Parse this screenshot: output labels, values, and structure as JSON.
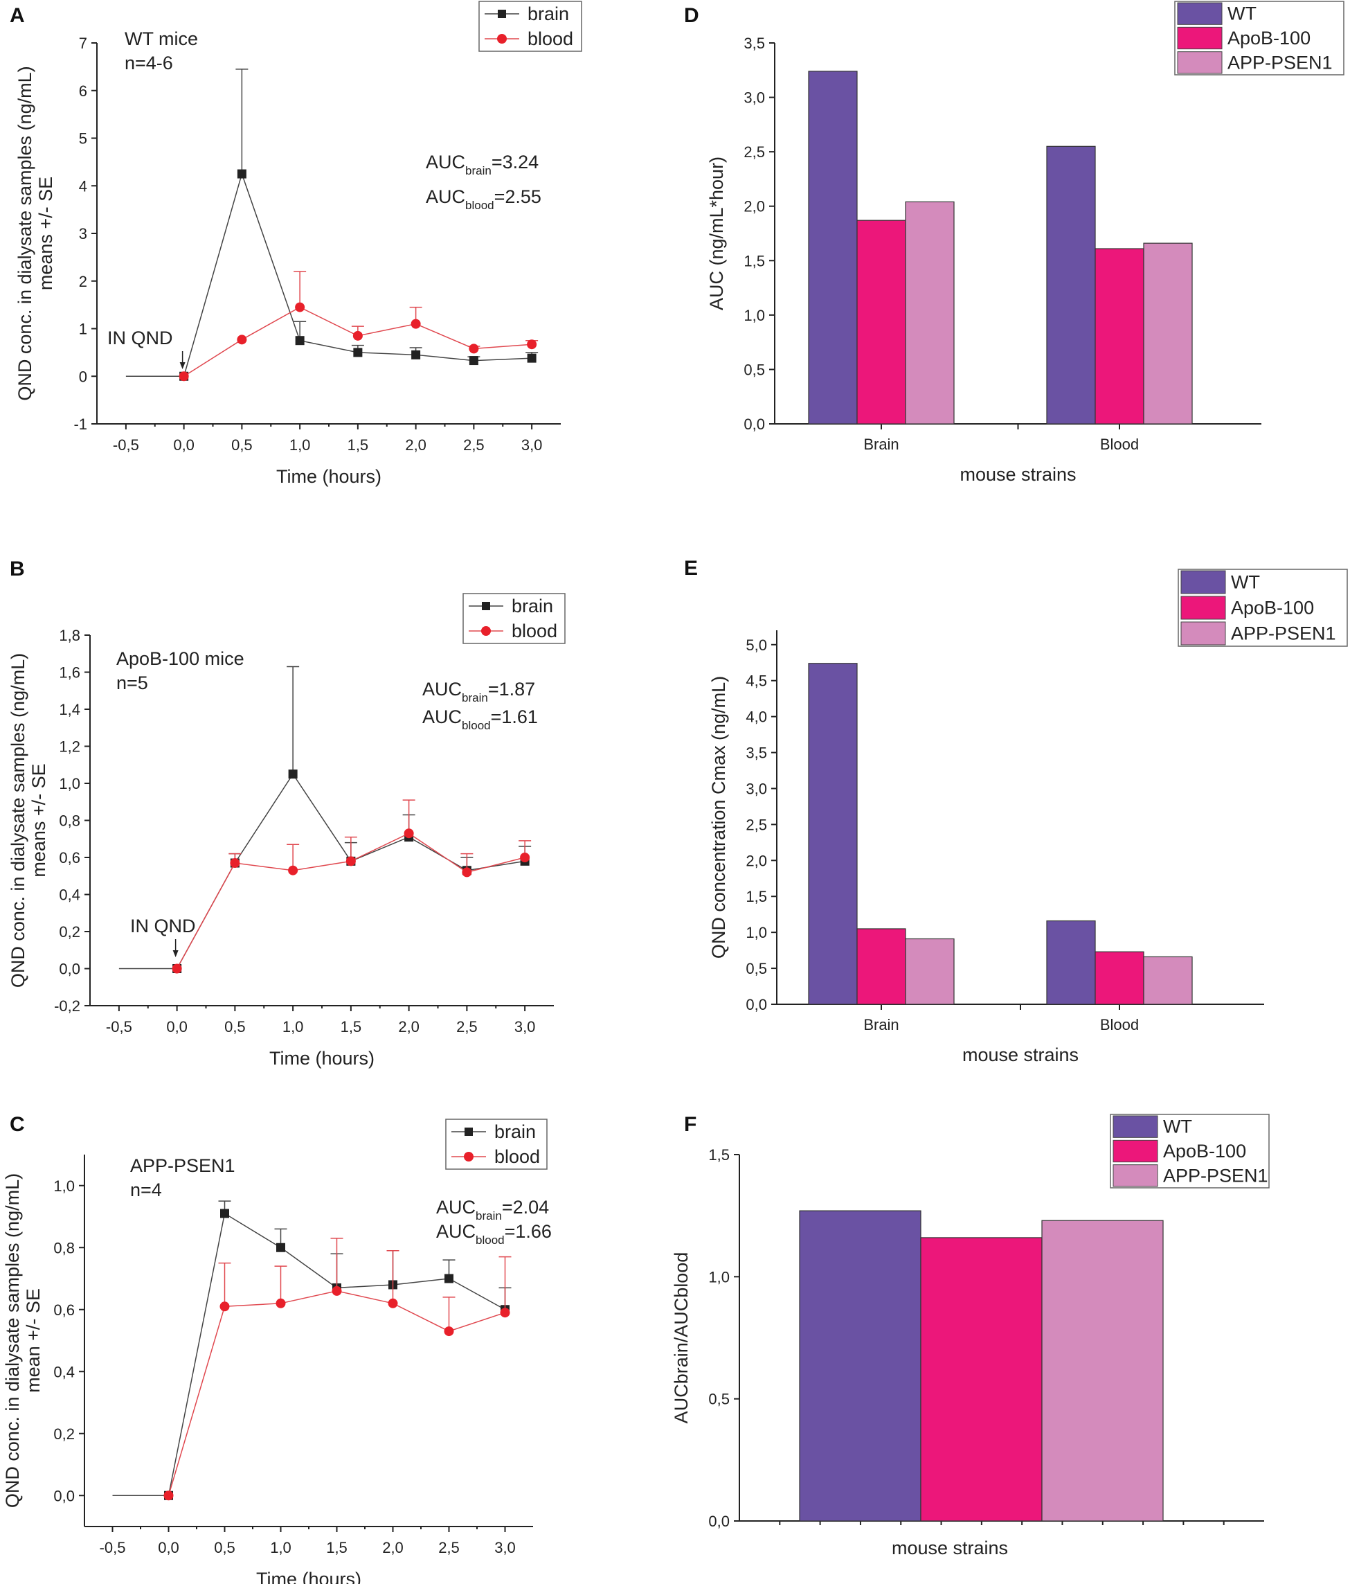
{
  "colors": {
    "brain": "#222222",
    "blood": "#e8202a",
    "brain_line": "#444444",
    "blood_line": "#e0484f",
    "WT": "#6a52a3",
    "ApoB-100": "#ec177a",
    "APP-PSEN1": "#d48bbc"
  },
  "chart_data": [
    {
      "panel": "A",
      "type": "line",
      "title": "WT mice",
      "subtitle": "n=4-6",
      "xlabel": "Time (hours)",
      "ylabel": [
        "QND conc. in dialysate samples (ng/mL)",
        "means +/- SE"
      ],
      "xlim": [
        -0.75,
        3.25
      ],
      "ylim": [
        -1,
        7
      ],
      "xticks": [
        -0.5,
        0,
        0.5,
        1,
        1.5,
        2,
        2.5,
        3
      ],
      "xtick_labels": [
        "-0,5",
        "0,0",
        "0,5",
        "1,0",
        "1,5",
        "2,0",
        "2,5",
        "3,0"
      ],
      "yticks": [
        -1,
        0,
        1,
        2,
        3,
        4,
        5,
        6,
        7
      ],
      "ytick_labels": [
        "-1",
        "0",
        "1",
        "2",
        "3",
        "4",
        "5",
        "6",
        "7"
      ],
      "baseline": {
        "x": [
          -0.5,
          0
        ],
        "y": [
          0,
          0
        ]
      },
      "annotation": "IN QND",
      "auc": [
        {
          "base": "AUC",
          "sub": "brain",
          "value": "=3.24"
        },
        {
          "base": "AUC",
          "sub": "blood",
          "value": "=2.55"
        }
      ],
      "legend": [
        "brain",
        "blood"
      ],
      "series": [
        {
          "name": "brain",
          "x": [
            0,
            0.5,
            1,
            1.5,
            2,
            2.5,
            3
          ],
          "y": [
            0,
            4.25,
            0.75,
            0.5,
            0.45,
            0.33,
            0.38
          ],
          "err": [
            0,
            2.2,
            0.4,
            0.15,
            0.15,
            0.08,
            0.12
          ]
        },
        {
          "name": "blood",
          "x": [
            0,
            0.5,
            1,
            1.5,
            2,
            2.5,
            3
          ],
          "y": [
            0,
            0.77,
            1.45,
            0.85,
            1.1,
            0.58,
            0.67
          ],
          "err": [
            0,
            0,
            0.75,
            0.2,
            0.35,
            0.05,
            0.08
          ]
        }
      ]
    },
    {
      "panel": "B",
      "type": "line",
      "title": "ApoB-100 mice",
      "subtitle": "n=5",
      "xlabel": "Time (hours)",
      "ylabel": [
        "QND conc. in dialysate samples (ng/mL)",
        "means +/- SE"
      ],
      "xlim": [
        -0.75,
        3.25
      ],
      "ylim": [
        -0.2,
        1.8
      ],
      "xticks": [
        -0.5,
        0,
        0.5,
        1,
        1.5,
        2,
        2.5,
        3
      ],
      "xtick_labels": [
        "-0,5",
        "0,0",
        "0,5",
        "1,0",
        "1,5",
        "2,0",
        "2,5",
        "3,0"
      ],
      "yticks": [
        -0.2,
        0,
        0.2,
        0.4,
        0.6,
        0.8,
        1.0,
        1.2,
        1.4,
        1.6,
        1.8
      ],
      "ytick_labels": [
        "-0,2",
        "0,0",
        "0,2",
        "0,4",
        "0,6",
        "0,8",
        "1,0",
        "1,2",
        "1,4",
        "1,6",
        "1,8"
      ],
      "baseline": {
        "x": [
          -0.5,
          0
        ],
        "y": [
          0,
          0
        ]
      },
      "annotation": "IN QND",
      "auc": [
        {
          "base": "AUC",
          "sub": "brain",
          "value": "=1.87"
        },
        {
          "base": "AUC",
          "sub": "blood",
          "value": "=1.61"
        }
      ],
      "legend": [
        "brain",
        "blood"
      ],
      "series": [
        {
          "name": "brain",
          "x": [
            0,
            0.5,
            1,
            1.5,
            2,
            2.5,
            3
          ],
          "y": [
            0,
            0.57,
            1.05,
            0.58,
            0.71,
            0.53,
            0.58
          ],
          "err": [
            0,
            0.05,
            0.58,
            0.1,
            0.12,
            0.07,
            0.08
          ]
        },
        {
          "name": "blood",
          "x": [
            0,
            0.5,
            1,
            1.5,
            2,
            2.5,
            3
          ],
          "y": [
            0,
            0.57,
            0.53,
            0.58,
            0.73,
            0.52,
            0.6
          ],
          "err": [
            0,
            0.05,
            0.14,
            0.13,
            0.18,
            0.1,
            0.09
          ]
        }
      ]
    },
    {
      "panel": "C",
      "type": "line",
      "title": "APP-PSEN1",
      "subtitle": "n=4",
      "xlabel": "Time (hours)",
      "ylabel": [
        "QND conc. in dialysate samples (ng/mL)",
        "mean +/- SE"
      ],
      "xlim": [
        -0.75,
        3.25
      ],
      "ylim": [
        -0.1,
        1.1
      ],
      "xticks": [
        -0.5,
        0,
        0.5,
        1,
        1.5,
        2,
        2.5,
        3
      ],
      "xtick_labels": [
        "-0,5",
        "0,0",
        "0,5",
        "1,0",
        "1,5",
        "2,0",
        "2,5",
        "3,0"
      ],
      "yticks": [
        0,
        0.2,
        0.4,
        0.6,
        0.8,
        1.0
      ],
      "ytick_labels": [
        "0,0",
        "0,2",
        "0,4",
        "0,6",
        "0,8",
        "1,0"
      ],
      "baseline": {
        "x": [
          -0.5,
          0
        ],
        "y": [
          0,
          0
        ]
      },
      "auc": [
        {
          "base": "AUC",
          "sub": "brain",
          "value": "=2.04"
        },
        {
          "base": "AUC",
          "sub": "blood",
          "value": "=1.66"
        }
      ],
      "legend": [
        "brain",
        "blood"
      ],
      "series": [
        {
          "name": "brain",
          "x": [
            0,
            0.5,
            1,
            1.5,
            2,
            2.5,
            3
          ],
          "y": [
            0,
            0.91,
            0.8,
            0.67,
            0.68,
            0.7,
            0.6
          ],
          "err": [
            0,
            0.04,
            0.06,
            0.11,
            0.11,
            0.06,
            0.07
          ]
        },
        {
          "name": "blood",
          "x": [
            0,
            0.5,
            1,
            1.5,
            2,
            2.5,
            3
          ],
          "y": [
            0,
            0.61,
            0.62,
            0.66,
            0.62,
            0.53,
            0.59
          ],
          "err": [
            0,
            0.14,
            0.12,
            0.17,
            0.17,
            0.11,
            0.18
          ]
        }
      ]
    },
    {
      "panel": "D",
      "type": "bar",
      "xlabel": "mouse strains",
      "ylabel": "AUC (ng/mL*hour)",
      "ylim": [
        0,
        3.5
      ],
      "yticks": [
        0,
        0.5,
        1,
        1.5,
        2,
        2.5,
        3,
        3.5
      ],
      "ytick_labels": [
        "0,0",
        "0,5",
        "1,0",
        "1,5",
        "2,0",
        "2,5",
        "3,0",
        "3,5"
      ],
      "categories": [
        "Brain",
        "Blood"
      ],
      "legend": [
        "WT",
        "ApoB-100",
        "APP-PSEN1"
      ],
      "series": [
        {
          "name": "WT",
          "values": [
            3.24,
            2.55
          ]
        },
        {
          "name": "ApoB-100",
          "values": [
            1.87,
            1.61
          ]
        },
        {
          "name": "APP-PSEN1",
          "values": [
            2.04,
            1.66
          ]
        }
      ]
    },
    {
      "panel": "E",
      "type": "bar",
      "xlabel": "mouse strains",
      "ylabel": "QND concentration Cmax (ng/mL)",
      "ylim": [
        0,
        5.2
      ],
      "yticks": [
        0,
        0.5,
        1,
        1.5,
        2,
        2.5,
        3,
        3.5,
        4,
        4.5,
        5
      ],
      "ytick_labels": [
        "0,0",
        "0,5",
        "1,0",
        "1,5",
        "2,0",
        "2,5",
        "3,0",
        "3,5",
        "4,0",
        "4,5",
        "5,0"
      ],
      "categories": [
        "Brain",
        "Blood"
      ],
      "legend": [
        "WT",
        "ApoB-100",
        "APP-PSEN1"
      ],
      "series": [
        {
          "name": "WT",
          "values": [
            4.74,
            1.16
          ]
        },
        {
          "name": "ApoB-100",
          "values": [
            1.05,
            0.73
          ]
        },
        {
          "name": "APP-PSEN1",
          "values": [
            0.91,
            0.66
          ]
        }
      ]
    },
    {
      "panel": "F",
      "type": "bar",
      "xlabel": "mouse strains",
      "ylabel": "AUCbrain/AUCblood",
      "ylim": [
        0,
        1.5
      ],
      "yticks": [
        0,
        0.5,
        1,
        1.5
      ],
      "ytick_labels": [
        "0,0",
        "0,5",
        "1,0",
        "1,5"
      ],
      "categories": [
        ""
      ],
      "legend": [
        "WT",
        "ApoB-100",
        "APP-PSEN1"
      ],
      "series": [
        {
          "name": "WT",
          "values": [
            1.27
          ]
        },
        {
          "name": "ApoB-100",
          "values": [
            1.16
          ]
        },
        {
          "name": "APP-PSEN1",
          "values": [
            1.23
          ]
        }
      ]
    }
  ]
}
